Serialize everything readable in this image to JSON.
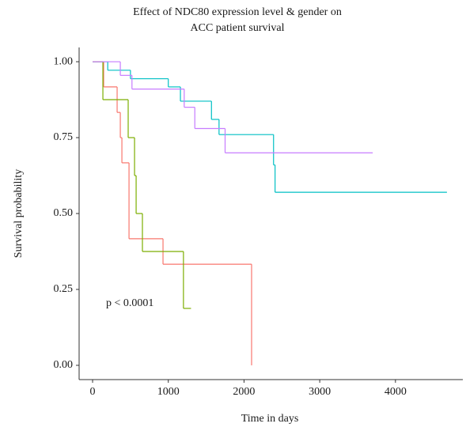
{
  "chart_data": {
    "type": "step",
    "title": [
      "Effect of NDC80 expression level & gender on",
      "ACC patient survival"
    ],
    "x_label": "Time in days",
    "y_label": "Survival probability",
    "annotation": "p < 0.0001",
    "xlim": [
      -178,
      4890
    ],
    "ylim": [
      -0.047,
      1.047
    ],
    "xticks": [
      0,
      1000,
      2000,
      3000,
      4000
    ],
    "yticks": [
      {
        "value": 0,
        "label": "0.00"
      },
      {
        "value": 0.25,
        "label": "0.25"
      },
      {
        "value": 0.5,
        "label": "0.50"
      },
      {
        "value": 0.75,
        "label": "0.75"
      },
      {
        "value": 1,
        "label": "1.00"
      }
    ],
    "series": [
      {
        "color": "#F8766D",
        "x": [
          0,
          146,
          324,
          366,
          387,
          481,
          930,
          2100
        ],
        "values": [
          1,
          0.917,
          0.833,
          0.75,
          0.667,
          0.417,
          0.333,
          0
        ]
      },
      {
        "color": "#7CAE00",
        "x": [
          0,
          136,
          470,
          554,
          575,
          658,
          1200,
          1300
        ],
        "values": [
          1,
          0.875,
          0.75,
          0.625,
          0.5,
          0.375,
          0.1875,
          0.1875
        ]
      },
      {
        "color": "#00BFC4",
        "x": [
          0,
          200,
          500,
          1000,
          1160,
          1570,
          1670,
          2390,
          2410,
          4680
        ],
        "values": [
          1,
          0.972,
          0.944,
          0.917,
          0.87,
          0.81,
          0.76,
          0.66,
          0.57,
          0.57
        ]
      },
      {
        "color": "#C77CFF",
        "x": [
          0,
          366,
          520,
          1210,
          1350,
          1750,
          3700
        ],
        "values": [
          1,
          0.955,
          0.91,
          0.85,
          0.78,
          0.7,
          0.7
        ]
      }
    ]
  }
}
